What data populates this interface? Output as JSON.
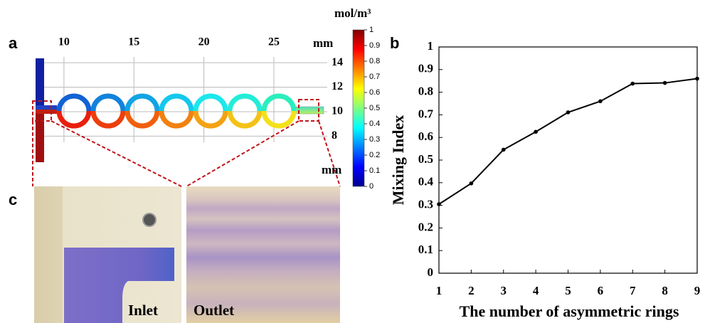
{
  "panel_labels": [
    "a",
    "b",
    "c"
  ],
  "simulation": {
    "x_unit": "mm",
    "y_unit": "mm",
    "xlim": [
      7.87,
      28.56
    ],
    "ylim": [
      5.76,
      14.47
    ],
    "xticks": [
      10,
      15,
      20,
      25
    ],
    "yticks": [
      14,
      12,
      10,
      8
    ],
    "colorbar": {
      "title": "mol/m³",
      "lim": [
        0,
        1
      ],
      "ticks": [
        0,
        0.1,
        0.2,
        0.3,
        0.4,
        0.5,
        0.6,
        0.7,
        0.8,
        0.9,
        1
      ]
    }
  },
  "micrographs": {
    "labels": [
      "Inlet",
      "Outlet"
    ]
  },
  "chart_data": {
    "type": "line",
    "xlabel": "The number of asymmetric rings",
    "ylabel": "Mixing Index",
    "x": [
      1,
      2,
      3,
      4,
      5,
      6,
      7,
      8,
      9
    ],
    "series": [
      {
        "color": "#000000",
        "values": [
          0.305,
          0.397,
          0.546,
          0.625,
          0.711,
          0.76,
          0.838,
          0.841,
          0.86
        ]
      }
    ],
    "xlim": [
      1,
      9
    ],
    "ylim": [
      0,
      1
    ],
    "xticks": [
      1,
      2,
      3,
      4,
      5,
      6,
      7,
      8,
      9
    ],
    "yticks": [
      0,
      0.1,
      0.2,
      0.3,
      0.4,
      0.5,
      0.6,
      0.7,
      0.8,
      0.9,
      1
    ]
  }
}
